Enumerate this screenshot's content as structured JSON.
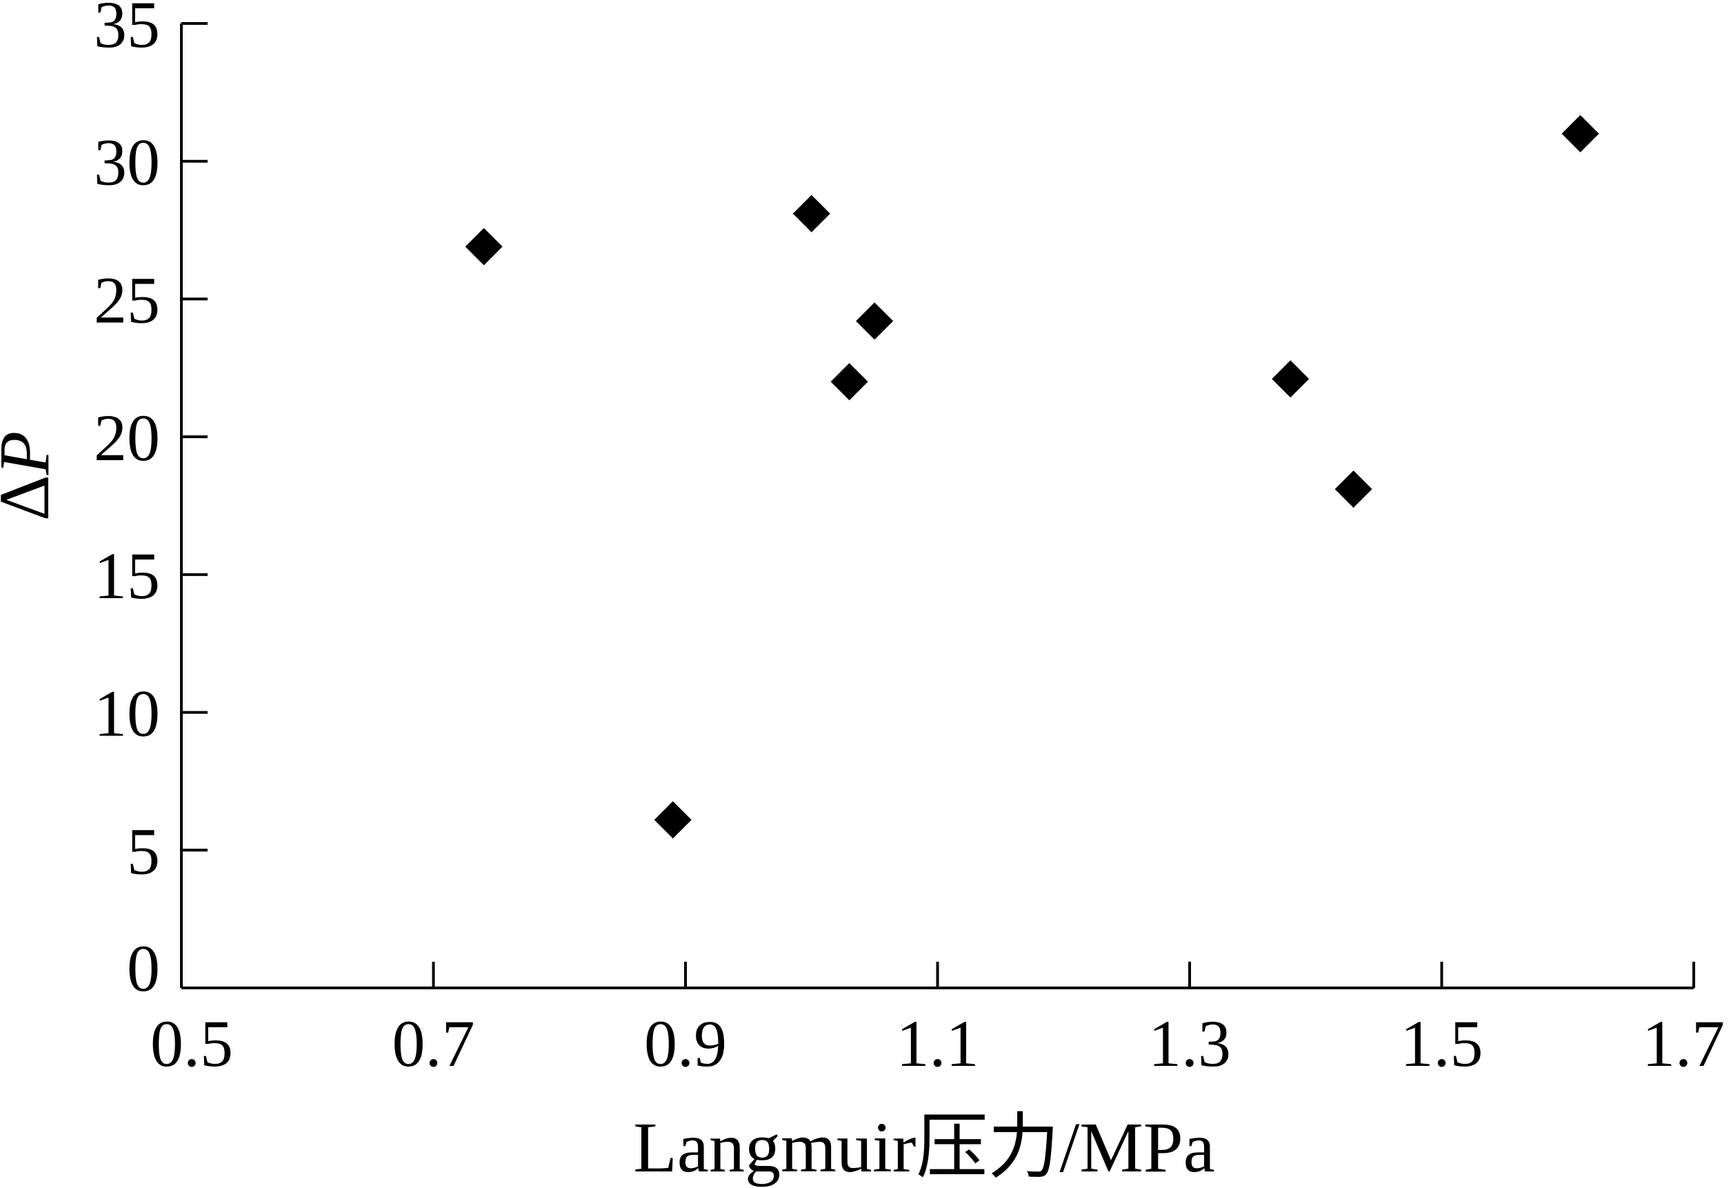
{
  "chart_data": {
    "type": "scatter",
    "title": "",
    "xlabel": "Langmuir压力/MPa",
    "ylabel_prefix": "Δ",
    "ylabel_var": "P",
    "xlim": [
      0.5,
      1.7
    ],
    "ylim": [
      0,
      35
    ],
    "xticks": [
      0.5,
      0.7,
      0.9,
      1.1,
      1.3,
      1.5,
      1.7
    ],
    "xtick_labels": [
      "0.5",
      "0.7",
      "0.9",
      "1.1",
      "1.3",
      "1.5",
      "1.7"
    ],
    "yticks": [
      0,
      5,
      10,
      15,
      20,
      25,
      30,
      35
    ],
    "ytick_labels": [
      "0",
      "5",
      "10",
      "15",
      "20",
      "25",
      "30",
      "35"
    ],
    "grid": false,
    "marker": "diamond",
    "marker_color": "#000000",
    "points": [
      {
        "x": 0.74,
        "y": 26.9
      },
      {
        "x": 0.89,
        "y": 6.1
      },
      {
        "x": 1.0,
        "y": 28.1
      },
      {
        "x": 1.03,
        "y": 22.0
      },
      {
        "x": 1.05,
        "y": 24.2
      },
      {
        "x": 1.38,
        "y": 22.1
      },
      {
        "x": 1.43,
        "y": 18.1
      },
      {
        "x": 1.61,
        "y": 31.0
      }
    ]
  }
}
